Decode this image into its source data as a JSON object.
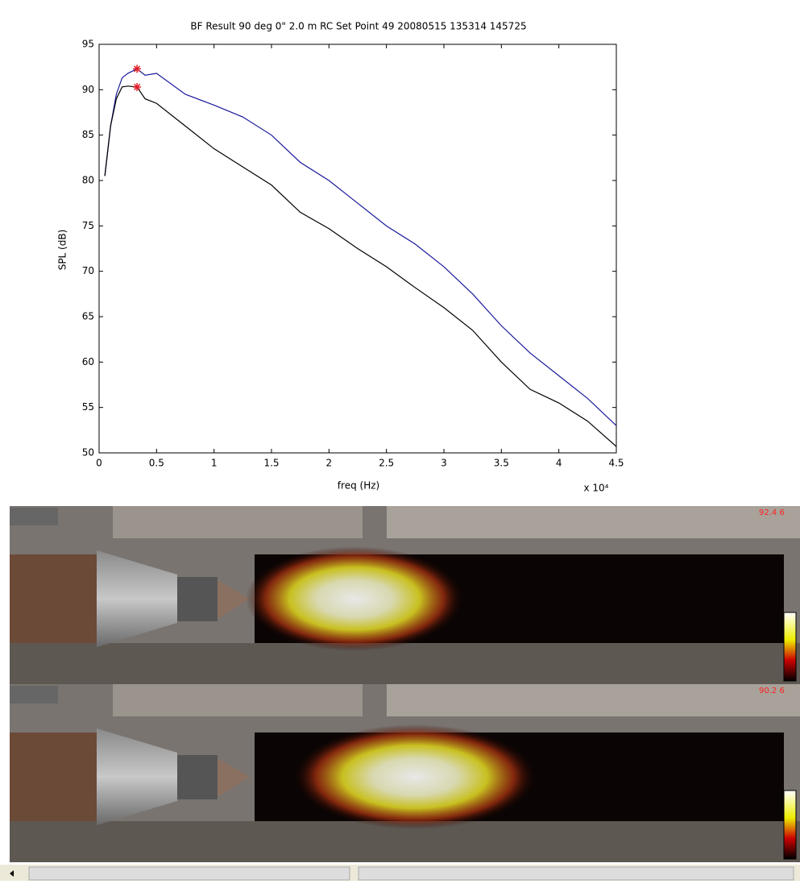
{
  "chart_data": {
    "type": "line",
    "title": "BF Result  90 deg 0\"  2.0 m  RC  Set Point 49  20080515 135314 145725",
    "xlabel": "freq (Hz)",
    "ylabel": "SPL (dB)",
    "x_multiplier": "x 10⁴",
    "xlim": [
      0,
      4.5
    ],
    "ylim": [
      50,
      95
    ],
    "xticks": [
      0,
      0.5,
      1,
      1.5,
      2,
      2.5,
      3,
      3.5,
      4,
      4.5
    ],
    "yticks": [
      50,
      55,
      60,
      65,
      70,
      75,
      80,
      85,
      90,
      95
    ],
    "grid": false,
    "x": [
      0.05,
      0.1,
      0.15,
      0.2,
      0.25,
      0.33,
      0.4,
      0.5,
      0.75,
      1,
      1.25,
      1.5,
      1.75,
      2,
      2.25,
      2.5,
      2.75,
      3,
      3.25,
      3.5,
      3.75,
      4,
      4.25,
      4.5
    ],
    "series": [
      {
        "color": "#1a1a9c",
        "values": [
          80.5,
          86,
          89.5,
          91.3,
          91.8,
          92.3,
          91.6,
          91.8,
          89.5,
          88.3,
          87,
          85,
          82,
          80,
          77.5,
          75,
          73,
          70.5,
          67.5,
          64,
          61,
          58.5,
          56,
          53
        ]
      },
      {
        "color": "#000000",
        "values": [
          80.5,
          86,
          89,
          90.3,
          90.4,
          90.3,
          89,
          88.5,
          86,
          83.5,
          81.5,
          79.5,
          76.5,
          74.7,
          72.5,
          70.5,
          68.2,
          66,
          63.5,
          60,
          57,
          55.5,
          53.5,
          50.7
        ]
      }
    ],
    "markers": {
      "color": "#e0202a",
      "x": [
        0.33,
        0.33
      ],
      "values": [
        92.3,
        90.3
      ]
    }
  },
  "panels": [
    {
      "level_label": "92.4 6"
    },
    {
      "level_label": "90.2 6"
    }
  ]
}
